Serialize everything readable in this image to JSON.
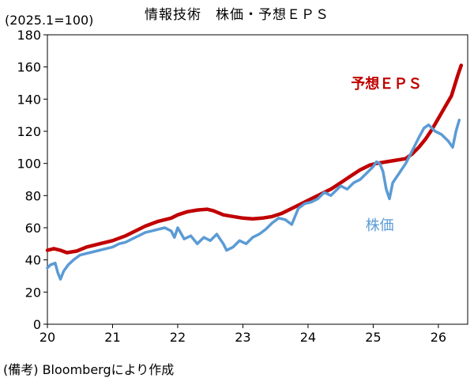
{
  "chart_data": {
    "type": "line",
    "title": "情報技術　株価・予想ＥＰＳ",
    "unit_label": "(2025.1=100)",
    "source_note": "(備考) Bloombergにより作成",
    "x_ticks": [
      "20",
      "21",
      "22",
      "23",
      "24",
      "25",
      "26"
    ],
    "x_range": [
      2020.0,
      2026.45
    ],
    "ylim": [
      0,
      180
    ],
    "y_ticks": [
      0,
      20,
      40,
      60,
      80,
      100,
      120,
      140,
      160,
      180
    ],
    "grid": false,
    "series": [
      {
        "name": "予想ＥＰＳ",
        "color": "#c00000",
        "x": [
          2020.0,
          2020.1,
          2020.2,
          2020.3,
          2020.45,
          2020.6,
          2020.8,
          2021.0,
          2021.2,
          2021.35,
          2021.5,
          2021.7,
          2021.9,
          2022.0,
          2022.15,
          2022.3,
          2022.45,
          2022.55,
          2022.7,
          2022.85,
          2023.0,
          2023.15,
          2023.3,
          2023.45,
          2023.6,
          2023.75,
          2023.9,
          2024.05,
          2024.2,
          2024.35,
          2024.5,
          2024.65,
          2024.8,
          2024.95,
          2025.05,
          2025.2,
          2025.35,
          2025.5,
          2025.6,
          2025.7,
          2025.8,
          2025.9,
          2026.0,
          2026.1,
          2026.2,
          2026.3,
          2026.35
        ],
        "values": [
          46,
          47,
          46,
          44.5,
          45.5,
          48,
          50,
          52,
          55,
          58,
          61,
          64,
          66,
          68,
          70,
          71,
          71.5,
          70.5,
          68,
          67,
          66,
          65.5,
          66,
          67,
          69,
          72,
          75,
          78,
          81,
          84,
          88,
          92,
          96,
          99,
          100,
          101,
          102,
          103,
          106,
          110,
          115,
          121,
          128,
          135,
          142,
          155,
          161
        ]
      },
      {
        "name": "株価",
        "color": "#5b9bd5",
        "x": [
          2020.0,
          2020.05,
          2020.12,
          2020.16,
          2020.2,
          2020.25,
          2020.32,
          2020.4,
          2020.5,
          2020.6,
          2020.7,
          2020.8,
          2020.9,
          2021.0,
          2021.1,
          2021.2,
          2021.3,
          2021.4,
          2021.5,
          2021.6,
          2021.7,
          2021.8,
          2021.9,
          2021.95,
          2022.0,
          2022.1,
          2022.2,
          2022.3,
          2022.4,
          2022.5,
          2022.6,
          2022.7,
          2022.75,
          2022.85,
          2022.95,
          2023.05,
          2023.15,
          2023.25,
          2023.35,
          2023.45,
          2023.55,
          2023.65,
          2023.75,
          2023.85,
          2023.95,
          2024.05,
          2024.15,
          2024.25,
          2024.35,
          2024.45,
          2024.5,
          2024.6,
          2024.7,
          2024.8,
          2024.9,
          2025.0,
          2025.05,
          2025.1,
          2025.15,
          2025.2,
          2025.25,
          2025.3,
          2025.4,
          2025.5,
          2025.6,
          2025.7,
          2025.78,
          2025.85,
          2025.95,
          2026.05,
          2026.15,
          2026.22,
          2026.27,
          2026.32
        ],
        "values": [
          35,
          37,
          38,
          32,
          28,
          33,
          37,
          40,
          43,
          44,
          45,
          46,
          47,
          48,
          50,
          51,
          53,
          55,
          57,
          58,
          59,
          60,
          58,
          54,
          60,
          53,
          55,
          50,
          54,
          52,
          56,
          50,
          46,
          48,
          52,
          50,
          54,
          56,
          59,
          63,
          66,
          65,
          62,
          72,
          75,
          76,
          78,
          82,
          80,
          84,
          86,
          84,
          88,
          90,
          94,
          98,
          101,
          100,
          95,
          84,
          78,
          88,
          94,
          100,
          108,
          116,
          122,
          124,
          120,
          118,
          114,
          110,
          120,
          127
        ]
      }
    ]
  }
}
